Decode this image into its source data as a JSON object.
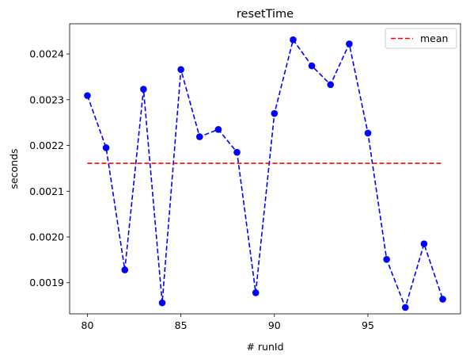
{
  "chart_data": {
    "type": "line",
    "title": "resetTime",
    "xlabel": "# runId",
    "ylabel": "seconds",
    "xlim": [
      79.05,
      99.95
    ],
    "ylim": [
      0.001832,
      0.002466
    ],
    "xticks": [
      80,
      85,
      90,
      95
    ],
    "yticks": [
      0.0019,
      0.002,
      0.0021,
      0.0022,
      0.0023,
      0.0024
    ],
    "ytick_labels": [
      "0.0019",
      "0.0020",
      "0.0021",
      "0.0022",
      "0.0023",
      "0.0024"
    ],
    "grid": false,
    "legend_position": "top-right",
    "x": [
      80,
      81,
      82,
      83,
      84,
      85,
      86,
      87,
      88,
      89,
      90,
      91,
      92,
      93,
      94,
      95,
      96,
      97,
      98,
      99
    ],
    "series": [
      {
        "values": [
          0.002309,
          0.002195,
          0.001928,
          0.002323,
          0.001856,
          0.002366,
          0.002219,
          0.002235,
          0.002185,
          0.001878,
          0.00227,
          0.002431,
          0.002374,
          0.002333,
          0.002422,
          0.002227,
          0.001951,
          0.001846,
          0.001985,
          0.001864
        ],
        "color": "#0000ff",
        "linestyle": "dashed",
        "marker": "circle"
      },
      {
        "name": "mean",
        "x_range": [
          80,
          99
        ],
        "value": 0.002161,
        "color": "#ff0000",
        "linestyle": "dashed"
      }
    ]
  }
}
